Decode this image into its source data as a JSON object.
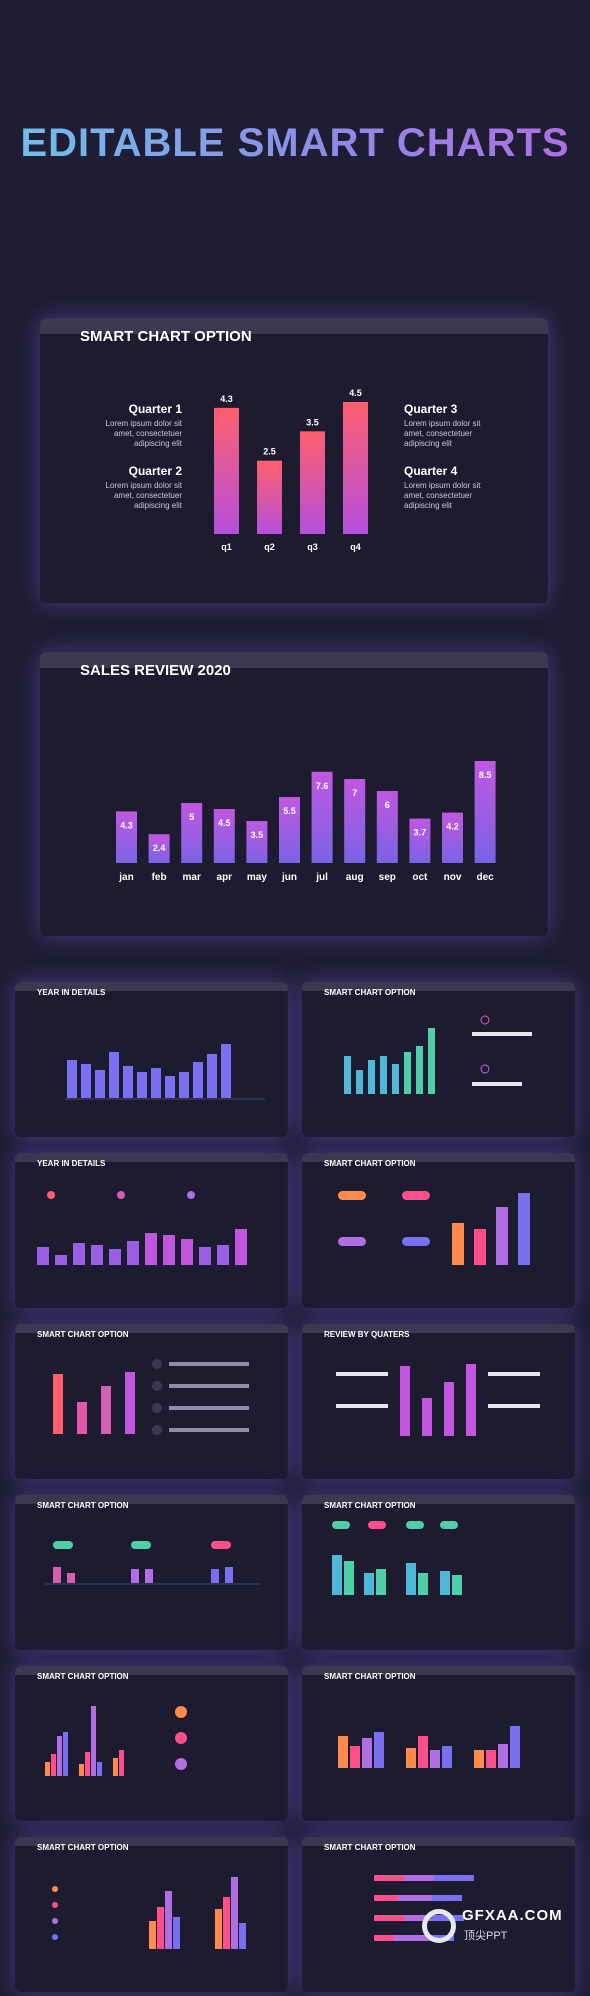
{
  "title": "EDITABLE SMART CHARTS",
  "slide1": {
    "title": "SMART CHART OPTION",
    "q1_h": "Quarter 1",
    "q2_h": "Quarter 2",
    "q3_h": "Quarter 3",
    "q4_h": "Quarter 4",
    "lorem": "Lorem ipsum dolor sit amet, consectetuer adipiscing elit"
  },
  "slide2": {
    "title": "SALES REVIEW 2020"
  },
  "thumbs": {
    "t1": "YEAR IN DETAILS",
    "t2": "SMART CHART OPTION",
    "t3": "YEAR IN DETAILS",
    "t4": "SMART CHART OPTION",
    "t5": "SMART CHART OPTION",
    "t6": "REVIEW BY QUATERS",
    "t7": "SMART CHART OPTION",
    "t8": "SMART CHART OPTION",
    "t9": "SMART CHART OPTION",
    "t10": "SMART CHART OPTION",
    "t11": "SMART CHART OPTION",
    "t12": "SMART CHART OPTION"
  },
  "watermark": {
    "name": "GFXAA.COM",
    "sub": "顶尖PPT"
  },
  "chart_data": [
    {
      "type": "bar",
      "categories": [
        "q1",
        "q2",
        "q3",
        "q4"
      ],
      "values": [
        4.3,
        2.5,
        3.5,
        4.5
      ],
      "ylim": [
        0,
        4.5
      ]
    },
    {
      "type": "bar",
      "categories": [
        "jan",
        "feb",
        "mar",
        "apr",
        "may",
        "jun",
        "jul",
        "aug",
        "sep",
        "oct",
        "nov",
        "dec"
      ],
      "values": [
        4.3,
        2.4,
        5,
        4.5,
        3.5,
        5.5,
        7.6,
        7,
        6,
        3.7,
        4.2,
        8.5
      ],
      "ylim": [
        0,
        8.5
      ]
    }
  ]
}
